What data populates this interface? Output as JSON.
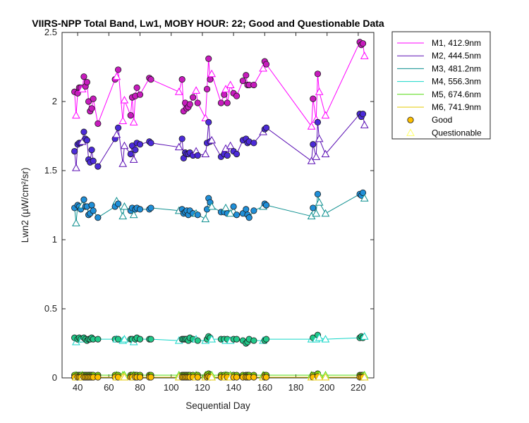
{
  "chart_data": {
    "type": "line",
    "title": "VIIRS-NPP Total Band, Lw1, MOBY HOUR: 22;  Good and Questionable Data",
    "xlabel": "Sequential Day",
    "ylabel": "Lwn2 (µW/cm²/sr)",
    "xlim": [
      30,
      230
    ],
    "ylim": [
      0,
      2.5
    ],
    "xticks": [
      40,
      60,
      80,
      100,
      120,
      140,
      160,
      180,
      200,
      220
    ],
    "yticks": [
      0,
      0.5,
      1,
      1.5,
      2,
      2.5
    ],
    "ytick_labels": [
      "0",
      "0.5",
      "1",
      "1.5",
      "2",
      "2.5"
    ],
    "legend_position": "outside-top-right",
    "x": [
      38,
      39,
      40,
      41,
      42,
      43,
      44,
      45,
      46,
      47,
      48,
      49,
      50,
      53,
      64,
      65,
      66,
      69,
      70,
      74,
      75,
      76,
      77,
      78,
      80,
      86,
      87,
      105,
      107,
      108,
      109,
      110,
      111,
      112,
      114,
      116,
      117,
      122,
      123,
      124,
      125,
      126,
      132,
      134,
      135,
      136,
      138,
      140,
      142,
      146,
      148,
      149,
      150,
      153,
      159,
      160,
      161,
      190,
      191,
      193,
      194,
      195,
      199,
      221,
      222,
      223,
      224
    ],
    "series": [
      {
        "name": "M1, 412.9nm",
        "color": "#ff00ff",
        "marker_fill": "#c71bbd",
        "values": [
          2.07,
          1.9,
          2.06,
          2.1,
          2.1,
          2.09,
          2.18,
          2.11,
          2.14,
          2.0,
          1.93,
          1.95,
          2.02,
          1.84,
          2.16,
          2.18,
          2.23,
          1.86,
          2.01,
          1.9,
          2.03,
          1.85,
          2.04,
          2.1,
          2.05,
          2.17,
          2.16,
          2.07,
          2.16,
          1.93,
          1.99,
          1.95,
          1.96,
          1.98,
          2.03,
          2.08,
          1.99,
          1.88,
          2.09,
          2.31,
          2.16,
          2.2,
          1.99,
          2.05,
          2.09,
          1.99,
          2.12,
          2.06,
          2.04,
          2.15,
          2.19,
          2.12,
          2.12,
          2.12,
          2.24,
          2.29,
          2.27,
          1.82,
          2.02,
          1.87,
          2.2,
          2.07,
          1.9,
          2.43,
          2.41,
          2.42,
          2.33
        ],
        "q_idx": [
          1,
          5,
          15,
          17,
          18,
          21,
          27,
          35,
          37,
          41,
          44,
          46,
          54,
          57,
          59,
          61,
          62,
          66
        ]
      },
      {
        "name": "M2, 444.5nm",
        "color": "#5a0fb4",
        "marker_fill": "#4b2ad8",
        "values": [
          1.64,
          1.52,
          1.69,
          1.7,
          1.7,
          1.71,
          1.78,
          1.73,
          1.72,
          1.58,
          1.56,
          1.65,
          1.57,
          1.53,
          1.73,
          1.76,
          1.81,
          1.55,
          1.68,
          1.62,
          1.68,
          1.58,
          1.65,
          1.7,
          1.69,
          1.71,
          1.7,
          1.67,
          1.73,
          1.59,
          1.63,
          1.62,
          1.62,
          1.63,
          1.61,
          1.64,
          1.61,
          1.62,
          1.7,
          1.85,
          1.71,
          1.72,
          1.6,
          1.62,
          1.66,
          1.61,
          1.68,
          1.64,
          1.62,
          1.72,
          1.73,
          1.7,
          1.71,
          1.7,
          1.78,
          1.8,
          1.81,
          1.57,
          1.69,
          1.6,
          1.85,
          1.73,
          1.62,
          1.91,
          1.89,
          1.91,
          1.83
        ],
        "q_idx": [
          1,
          5,
          15,
          17,
          18,
          21,
          27,
          35,
          37,
          41,
          44,
          46,
          54,
          57,
          59,
          61,
          62,
          66
        ]
      },
      {
        "name": "M3, 481.2nm",
        "color": "#0d8f8f",
        "marker_fill": "#1f8fd8",
        "values": [
          1.23,
          1.12,
          1.25,
          1.24,
          1.22,
          1.25,
          1.29,
          1.24,
          1.24,
          1.18,
          1.19,
          1.25,
          1.21,
          1.16,
          1.24,
          1.28,
          1.26,
          1.17,
          1.24,
          1.21,
          1.23,
          1.18,
          1.22,
          1.23,
          1.22,
          1.22,
          1.23,
          1.21,
          1.22,
          1.19,
          1.2,
          1.21,
          1.18,
          1.21,
          1.19,
          1.19,
          1.18,
          1.15,
          1.22,
          1.3,
          1.27,
          1.24,
          1.2,
          1.2,
          1.23,
          1.19,
          1.19,
          1.24,
          1.18,
          1.19,
          1.22,
          1.18,
          1.16,
          1.21,
          1.24,
          1.26,
          1.25,
          1.17,
          1.23,
          1.19,
          1.33,
          1.27,
          1.19,
          1.33,
          1.32,
          1.34,
          1.3
        ],
        "q_idx": [
          1,
          5,
          15,
          17,
          18,
          21,
          27,
          35,
          37,
          41,
          44,
          46,
          54,
          57,
          59,
          61,
          62,
          66
        ]
      },
      {
        "name": "M4, 556.3nm",
        "color": "#14d6c8",
        "marker_fill": "#21c98a",
        "values": [
          0.29,
          0.26,
          0.28,
          0.29,
          0.28,
          0.28,
          0.29,
          0.28,
          0.27,
          0.28,
          0.28,
          0.29,
          0.28,
          0.28,
          0.28,
          0.28,
          0.28,
          0.27,
          0.28,
          0.28,
          0.28,
          0.26,
          0.28,
          0.29,
          0.28,
          0.28,
          0.28,
          0.27,
          0.28,
          0.28,
          0.28,
          0.28,
          0.27,
          0.29,
          0.28,
          0.28,
          0.27,
          0.27,
          0.28,
          0.3,
          0.29,
          0.28,
          0.28,
          0.28,
          0.27,
          0.28,
          0.27,
          0.28,
          0.28,
          0.27,
          0.25,
          0.26,
          0.28,
          0.27,
          0.27,
          0.27,
          0.28,
          0.28,
          0.29,
          0.28,
          0.31,
          0.29,
          0.28,
          0.29,
          0.3,
          0.29,
          0.3
        ],
        "q_idx": [
          1,
          5,
          15,
          17,
          18,
          21,
          27,
          35,
          37,
          41,
          44,
          46,
          54,
          57,
          59,
          61,
          62,
          66
        ]
      },
      {
        "name": "M5, 674.6nm",
        "color": "#55dc10",
        "marker_fill": "#7fd610",
        "values": [
          0.02,
          0.02,
          0.02,
          0.02,
          0.02,
          0.02,
          0.02,
          0.02,
          0.02,
          0.02,
          0.02,
          0.02,
          0.02,
          0.02,
          0.02,
          0.02,
          0.02,
          0.02,
          0.02,
          0.02,
          0.02,
          0.02,
          0.02,
          0.02,
          0.02,
          0.02,
          0.02,
          0.02,
          0.02,
          0.02,
          0.02,
          0.02,
          0.02,
          0.02,
          0.02,
          0.02,
          0.02,
          0.02,
          0.02,
          0.03,
          0.02,
          0.02,
          0.02,
          0.02,
          0.02,
          0.02,
          0.02,
          0.02,
          0.02,
          0.02,
          0.02,
          0.02,
          0.02,
          0.02,
          0.02,
          0.02,
          0.02,
          0.02,
          0.02,
          0.02,
          0.03,
          0.02,
          0.02,
          0.02,
          0.02,
          0.02,
          0.02
        ],
        "q_idx": [
          1,
          5,
          15,
          17,
          18,
          21,
          27,
          35,
          37,
          41,
          44,
          46,
          54,
          57,
          59,
          61,
          62,
          66
        ]
      },
      {
        "name": "M6, 741.9nm",
        "color": "#e6c800",
        "marker_fill": "#ffc000",
        "values": [
          0.005,
          0.005,
          0.005,
          0.005,
          0.005,
          0.005,
          0.005,
          0.005,
          0.005,
          0.005,
          0.005,
          0.005,
          0.005,
          0.005,
          0.005,
          0.005,
          0.005,
          0.005,
          0.005,
          0.005,
          0.005,
          0.005,
          0.005,
          0.005,
          0.005,
          0.005,
          0.005,
          0.005,
          0.005,
          0.005,
          0.005,
          0.005,
          0.005,
          0.005,
          0.005,
          0.005,
          0.005,
          0.005,
          0.005,
          0.01,
          0.005,
          0.005,
          0.005,
          0.005,
          0.005,
          0.005,
          0.005,
          0.005,
          0.005,
          0.005,
          0.005,
          0.005,
          0.005,
          0.005,
          0.005,
          0.005,
          0.005,
          0.005,
          0.005,
          0.005,
          0.01,
          0.005,
          0.005,
          0.005,
          0.005,
          0.005,
          0.005
        ],
        "q_idx": [
          1,
          5,
          15,
          17,
          18,
          21,
          27,
          35,
          37,
          41,
          44,
          46,
          54,
          57,
          59,
          61,
          62,
          66
        ]
      }
    ],
    "legend": [
      {
        "label": "M1, 412.9nm",
        "kind": "line",
        "color": "#ff00ff"
      },
      {
        "label": "M2, 444.5nm",
        "kind": "line",
        "color": "#5a0fb4"
      },
      {
        "label": "M3, 481.2nm",
        "kind": "line",
        "color": "#0d8f8f"
      },
      {
        "label": "M4, 556.3nm",
        "kind": "line",
        "color": "#14d6c8"
      },
      {
        "label": "M5, 674.6nm",
        "kind": "line",
        "color": "#55dc10"
      },
      {
        "label": "M6, 741.9nm",
        "kind": "line",
        "color": "#e6c800"
      },
      {
        "label": "Good",
        "kind": "circle",
        "color": "#ffc000"
      },
      {
        "label": "Questionable",
        "kind": "triangle",
        "color": "#ffff66"
      }
    ]
  }
}
